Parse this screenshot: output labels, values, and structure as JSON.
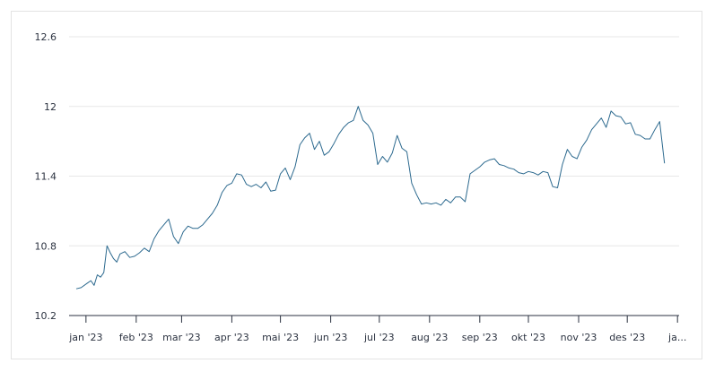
{
  "chart_data": {
    "type": "line",
    "title": "",
    "xlabel": "",
    "ylabel": "",
    "ylim": [
      10.2,
      12.6
    ],
    "y_ticks": [
      "12.6",
      "12",
      "11.4",
      "10.8",
      "10.2"
    ],
    "y_tick_values": [
      12.6,
      12.0,
      11.4,
      10.8,
      10.2
    ],
    "x_ticks": [
      "jan '23",
      "feb '23",
      "mar '23",
      "apr '23",
      "mai '23",
      "jun '23",
      "jul '23",
      "aug '23",
      "sep '23",
      "okt '23",
      "nov '23",
      "des '23",
      "ja..."
    ],
    "x_tick_dates": [
      "2023-01-01",
      "2023-02-01",
      "2023-03-01",
      "2023-04-01",
      "2023-05-01",
      "2023-06-01",
      "2023-07-01",
      "2023-08-01",
      "2023-09-01",
      "2023-10-01",
      "2023-11-01",
      "2023-12-01",
      "2024-01-01"
    ],
    "grid": true,
    "series_color": "#2d6a8f",
    "series": [
      {
        "x": [
          "2022-12-26",
          "2022-12-29",
          "2023-01-02",
          "2023-01-04",
          "2023-01-06",
          "2023-01-08",
          "2023-01-10",
          "2023-01-12",
          "2023-01-14",
          "2023-01-16",
          "2023-01-18",
          "2023-01-20",
          "2023-01-22",
          "2023-01-25",
          "2023-01-28",
          "2023-01-31",
          "2023-02-03",
          "2023-02-06",
          "2023-02-09",
          "2023-02-12",
          "2023-02-15",
          "2023-02-18",
          "2023-02-21",
          "2023-02-24",
          "2023-02-27",
          "2023-03-02",
          "2023-03-05",
          "2023-03-08",
          "2023-03-11",
          "2023-03-14",
          "2023-03-17",
          "2023-03-20",
          "2023-03-23",
          "2023-03-26",
          "2023-03-29",
          "2023-04-01",
          "2023-04-04",
          "2023-04-07",
          "2023-04-10",
          "2023-04-13",
          "2023-04-16",
          "2023-04-19",
          "2023-04-22",
          "2023-04-25",
          "2023-04-28",
          "2023-05-01",
          "2023-05-04",
          "2023-05-07",
          "2023-05-10",
          "2023-05-13",
          "2023-05-16",
          "2023-05-19",
          "2023-05-22",
          "2023-05-25",
          "2023-05-28",
          "2023-05-31",
          "2023-06-03",
          "2023-06-06",
          "2023-06-09",
          "2023-06-12",
          "2023-06-15",
          "2023-06-18",
          "2023-06-21",
          "2023-06-24",
          "2023-06-27",
          "2023-06-30",
          "2023-07-03",
          "2023-07-06",
          "2023-07-09",
          "2023-07-12",
          "2023-07-15",
          "2023-07-18",
          "2023-07-21",
          "2023-07-24",
          "2023-07-27",
          "2023-07-30",
          "2023-08-02",
          "2023-08-05",
          "2023-08-08",
          "2023-08-11",
          "2023-08-14",
          "2023-08-17",
          "2023-08-20",
          "2023-08-23",
          "2023-08-26",
          "2023-08-29",
          "2023-09-01",
          "2023-09-04",
          "2023-09-07",
          "2023-09-10",
          "2023-09-13",
          "2023-09-16",
          "2023-09-19",
          "2023-09-22",
          "2023-09-25",
          "2023-09-28",
          "2023-10-01",
          "2023-10-04",
          "2023-10-07",
          "2023-10-10",
          "2023-10-13",
          "2023-10-16",
          "2023-10-19",
          "2023-10-22",
          "2023-10-25",
          "2023-10-28",
          "2023-10-31",
          "2023-11-03",
          "2023-11-06",
          "2023-11-09",
          "2023-11-12",
          "2023-11-15",
          "2023-11-18",
          "2023-11-21",
          "2023-11-24",
          "2023-11-27",
          "2023-11-30",
          "2023-12-03",
          "2023-12-06",
          "2023-12-09",
          "2023-12-12",
          "2023-12-15",
          "2023-12-18",
          "2023-12-21",
          "2023-12-24"
        ],
        "y": [
          10.43,
          10.44,
          10.48,
          10.5,
          10.46,
          10.55,
          10.53,
          10.57,
          10.8,
          10.74,
          10.69,
          10.66,
          10.73,
          10.75,
          10.7,
          10.71,
          10.74,
          10.78,
          10.75,
          10.86,
          10.93,
          10.98,
          11.03,
          10.88,
          10.82,
          10.92,
          10.97,
          10.95,
          10.95,
          10.98,
          11.03,
          11.08,
          11.15,
          11.26,
          11.32,
          11.34,
          11.42,
          11.41,
          11.33,
          11.31,
          11.33,
          11.3,
          11.35,
          11.27,
          11.28,
          11.42,
          11.47,
          11.37,
          11.48,
          11.67,
          11.73,
          11.77,
          11.63,
          11.7,
          11.58,
          11.61,
          11.68,
          11.76,
          11.82,
          11.86,
          11.88,
          12.0,
          11.88,
          11.84,
          11.77,
          11.5,
          11.57,
          11.52,
          11.6,
          11.75,
          11.64,
          11.61,
          11.34,
          11.24,
          11.16,
          11.17,
          11.16,
          11.17,
          11.15,
          11.2,
          11.17,
          11.22,
          11.22,
          11.18,
          11.42,
          11.45,
          11.48,
          11.52,
          11.54,
          11.55,
          11.5,
          11.49,
          11.47,
          11.46,
          11.43,
          11.42,
          11.44,
          11.43,
          11.41,
          11.44,
          11.43,
          11.31,
          11.3,
          11.5,
          11.63,
          11.57,
          11.55,
          11.65,
          11.71,
          11.8,
          11.85,
          11.9,
          11.82,
          11.96,
          11.92,
          11.91,
          11.85,
          11.86,
          11.76,
          11.75,
          11.72,
          11.72,
          11.8,
          11.87,
          11.51
        ]
      }
    ]
  }
}
